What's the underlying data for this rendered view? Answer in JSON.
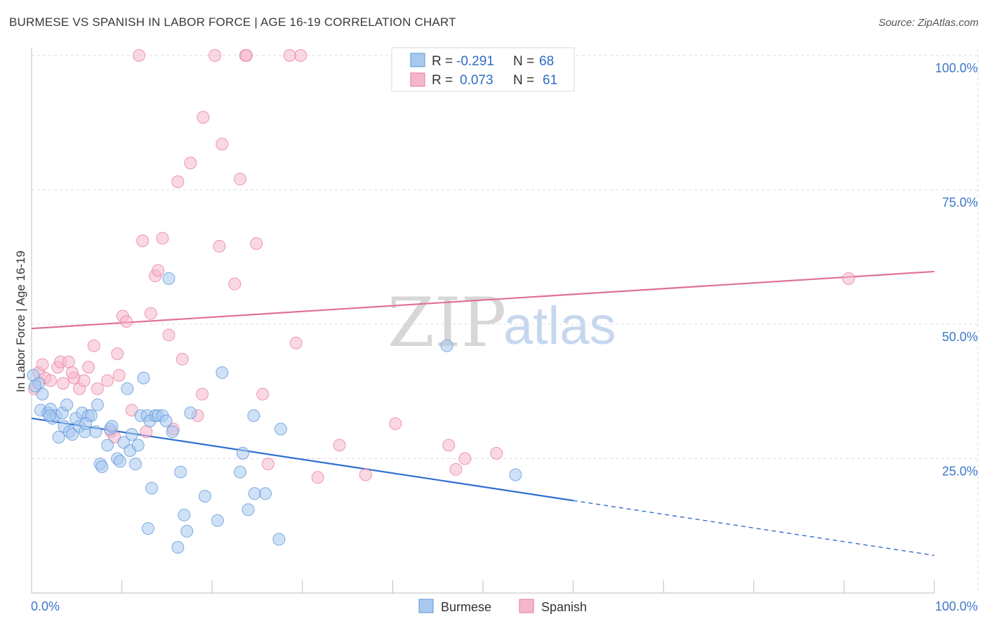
{
  "header": {
    "title": "BURMESE VS SPANISH IN LABOR FORCE | AGE 16-19 CORRELATION CHART",
    "source": "Source: ZipAtlas.com"
  },
  "watermark": {
    "zip": "ZIP",
    "atlas": "atlas"
  },
  "legend_top": {
    "rows": [
      {
        "r_label": "R =",
        "r_value": "-0.291",
        "n_label": "N =",
        "n_value": "68",
        "color": "#a8c8ee"
      },
      {
        "r_label": "R =",
        "r_value": "0.073",
        "n_label": "N =",
        "n_value": "61",
        "color": "#f5b8cb"
      }
    ]
  },
  "legend_bottom": {
    "burmese": "Burmese",
    "spanish": "Spanish"
  },
  "chart_data": {
    "type": "scatter",
    "title": "BURMESE VS SPANISH IN LABOR FORCE | AGE 16-19 CORRELATION CHART",
    "xlabel": "",
    "ylabel": "In Labor Force | Age 16-19",
    "xlim": [
      0,
      100
    ],
    "ylim": [
      0,
      100
    ],
    "x_tick_labels": [
      "0.0%",
      "100.0%"
    ],
    "y_tick_labels": [
      "25.0%",
      "50.0%",
      "75.0%",
      "100.0%"
    ],
    "y_ticks": [
      25,
      50,
      75,
      100
    ],
    "grid": true,
    "legend_placement": "top-center",
    "colors": {
      "burmese": "#5b93db",
      "burmese_fill": "#a8c8ee",
      "spanish": "#e8799e",
      "spanish_fill": "#f5b8cb",
      "burmese_line": "#2f6fd0",
      "spanish_line": "#e0709a"
    },
    "series": [
      {
        "name": "Burmese",
        "r": -0.291,
        "n": 68,
        "trend": {
          "x": [
            0,
            60,
            100
          ],
          "y": [
            32.5,
            17.2,
            7.0
          ],
          "solid_until": 60
        },
        "points": [
          [
            0.2,
            40.5
          ],
          [
            0.8,
            39.0
          ],
          [
            1.2,
            37.0
          ],
          [
            1.0,
            34.0
          ],
          [
            1.8,
            33.5
          ],
          [
            2.1,
            34.2
          ],
          [
            2.3,
            32.5
          ],
          [
            2.7,
            33.0
          ],
          [
            3.0,
            29.0
          ],
          [
            3.4,
            33.5
          ],
          [
            3.6,
            31.0
          ],
          [
            3.9,
            35.0
          ],
          [
            4.2,
            30.0
          ],
          [
            4.5,
            29.5
          ],
          [
            4.9,
            32.5
          ],
          [
            5.3,
            31.0
          ],
          [
            5.6,
            33.5
          ],
          [
            5.9,
            30.0
          ],
          [
            6.3,
            33.0
          ],
          [
            6.6,
            33.0
          ],
          [
            7.1,
            30.0
          ],
          [
            7.3,
            35.0
          ],
          [
            7.6,
            24.0
          ],
          [
            7.8,
            23.5
          ],
          [
            8.4,
            27.5
          ],
          [
            8.7,
            30.5
          ],
          [
            8.9,
            31.0
          ],
          [
            9.5,
            25.0
          ],
          [
            9.8,
            24.5
          ],
          [
            10.2,
            28.0
          ],
          [
            10.6,
            38.0
          ],
          [
            10.9,
            26.5
          ],
          [
            11.1,
            29.5
          ],
          [
            11.5,
            24.0
          ],
          [
            11.8,
            27.5
          ],
          [
            12.1,
            33.0
          ],
          [
            12.4,
            40.0
          ],
          [
            12.8,
            33.0
          ],
          [
            13.1,
            32.0
          ],
          [
            13.3,
            19.5
          ],
          [
            13.7,
            33.0
          ],
          [
            14.0,
            33.0
          ],
          [
            14.5,
            33.0
          ],
          [
            14.9,
            32.0
          ],
          [
            15.2,
            58.5
          ],
          [
            15.6,
            30.0
          ],
          [
            16.2,
            8.5
          ],
          [
            16.5,
            22.5
          ],
          [
            16.9,
            14.5
          ],
          [
            17.2,
            11.5
          ],
          [
            17.6,
            33.5
          ],
          [
            19.2,
            18.0
          ],
          [
            20.6,
            13.5
          ],
          [
            21.1,
            41.0
          ],
          [
            23.4,
            26.0
          ],
          [
            23.1,
            22.5
          ],
          [
            24.0,
            15.5
          ],
          [
            24.6,
            33.0
          ],
          [
            24.7,
            18.5
          ],
          [
            25.9,
            18.5
          ],
          [
            27.4,
            10.0
          ],
          [
            27.6,
            30.5
          ],
          [
            46.0,
            46.0
          ],
          [
            53.6,
            22.0
          ],
          [
            0.4,
            38.5
          ],
          [
            2.0,
            33.0
          ],
          [
            6.0,
            31.5
          ],
          [
            12.9,
            12.0
          ]
        ]
      },
      {
        "name": "Spanish",
        "r": 0.073,
        "n": 61,
        "trend": {
          "x": [
            0,
            100
          ],
          "y": [
            49.2,
            59.8
          ]
        },
        "points": [
          [
            0.8,
            41.0
          ],
          [
            1.2,
            42.5
          ],
          [
            1.5,
            40.0
          ],
          [
            2.1,
            39.5
          ],
          [
            2.9,
            42.0
          ],
          [
            3.2,
            43.0
          ],
          [
            3.5,
            39.0
          ],
          [
            4.1,
            43.0
          ],
          [
            4.7,
            40.0
          ],
          [
            5.3,
            38.0
          ],
          [
            5.8,
            39.5
          ],
          [
            6.3,
            42.0
          ],
          [
            6.9,
            46.0
          ],
          [
            7.3,
            38.0
          ],
          [
            8.4,
            39.5
          ],
          [
            8.8,
            30.0
          ],
          [
            9.2,
            29.0
          ],
          [
            9.5,
            44.5
          ],
          [
            9.7,
            40.5
          ],
          [
            10.1,
            51.5
          ],
          [
            10.5,
            50.5
          ],
          [
            11.1,
            34.0
          ],
          [
            11.9,
            100.0
          ],
          [
            12.3,
            65.5
          ],
          [
            12.7,
            30.0
          ],
          [
            13.2,
            52.0
          ],
          [
            13.7,
            59.0
          ],
          [
            14.0,
            60.0
          ],
          [
            14.5,
            66.0
          ],
          [
            15.2,
            48.0
          ],
          [
            15.7,
            30.5
          ],
          [
            16.2,
            76.5
          ],
          [
            16.7,
            43.5
          ],
          [
            17.6,
            80.0
          ],
          [
            18.4,
            33.0
          ],
          [
            18.9,
            37.0
          ],
          [
            19.0,
            88.5
          ],
          [
            20.3,
            100.0
          ],
          [
            20.8,
            64.5
          ],
          [
            21.1,
            83.5
          ],
          [
            22.5,
            57.5
          ],
          [
            23.1,
            77.0
          ],
          [
            23.7,
            100.0
          ],
          [
            23.8,
            100.0
          ],
          [
            24.9,
            65.0
          ],
          [
            25.6,
            37.0
          ],
          [
            26.2,
            24.0
          ],
          [
            28.6,
            100.0
          ],
          [
            29.3,
            46.5
          ],
          [
            29.8,
            100.0
          ],
          [
            31.7,
            21.5
          ],
          [
            34.1,
            27.5
          ],
          [
            37.0,
            22.0
          ],
          [
            40.3,
            31.5
          ],
          [
            46.2,
            27.5
          ],
          [
            47.0,
            23.0
          ],
          [
            48.0,
            25.0
          ],
          [
            51.5,
            26.0
          ],
          [
            90.5,
            58.5
          ],
          [
            0.3,
            38.0
          ],
          [
            4.5,
            41.0
          ]
        ]
      }
    ]
  }
}
